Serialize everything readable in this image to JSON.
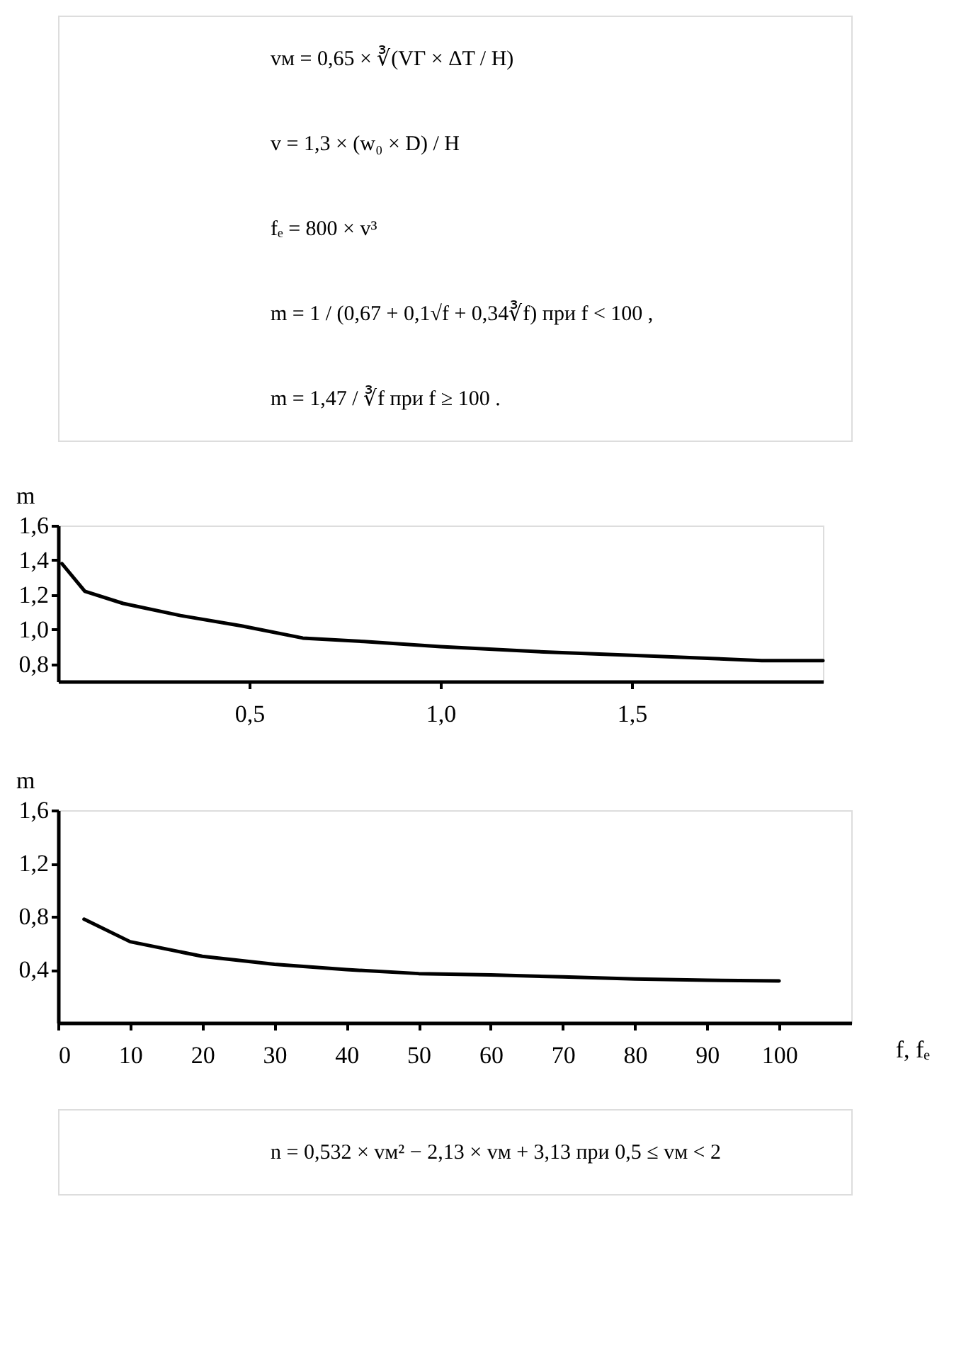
{
  "chart_data": [
    {
      "type": "line",
      "ylabel": "m",
      "annotations": [
        "vм = 0,65 × ∛(VГ × ΔT / H)",
        "v = 1,3 × (w₀ × D) / H",
        "fₑ = 800 × v³",
        "m = 1 / (0,67 + 0,1√f + 0,34∛f)     при   f < 100 ,",
        "m = 1,47 / ∛f     при   f ≥ 100 ."
      ],
      "x": [
        0.01,
        0.07,
        0.17,
        0.32,
        0.48,
        0.64,
        0.8,
        1.0,
        1.27,
        1.5,
        1.84,
        2.0
      ],
      "series": [
        {
          "color": "#000000",
          "values": [
            1.38,
            1.22,
            1.15,
            1.08,
            1.02,
            0.95,
            0.93,
            0.9,
            0.87,
            0.85,
            0.82,
            0.82
          ]
        }
      ],
      "xlim": [
        0,
        2.0
      ],
      "ylim": [
        0.7,
        1.6
      ],
      "xticks": [
        {
          "value": 0.5,
          "label": "0,5"
        },
        {
          "value": 1.0,
          "label": "1,0"
        },
        {
          "value": 1.5,
          "label": "1,5"
        }
      ],
      "yticks": [
        {
          "value": 0.8,
          "label": "0,8"
        },
        {
          "value": 1.0,
          "label": "1,0"
        },
        {
          "value": 1.2,
          "label": "1,2"
        },
        {
          "value": 1.4,
          "label": "1,4"
        },
        {
          "value": 1.6,
          "label": "1,6"
        }
      ],
      "grid": false,
      "marker": "none",
      "line_style": "solid"
    },
    {
      "type": "line",
      "ylabel": "m",
      "xlabel": "f, fₑ",
      "annotations": [
        "n = 0,532 × vм² − 2,13 × vм + 3,13     при   0,5 ≤ vм < 2"
      ],
      "x": [
        3.6,
        10,
        20,
        30,
        40,
        50,
        60,
        70,
        80,
        90,
        100
      ],
      "series": [
        {
          "color": "#000000",
          "values": [
            0.78,
            0.61,
            0.5,
            0.44,
            0.4,
            0.37,
            0.36,
            0.345,
            0.33,
            0.32,
            0.315
          ]
        }
      ],
      "xlim": [
        0,
        110
      ],
      "ylim": [
        0,
        1.6
      ],
      "xticks": [
        0,
        10,
        20,
        30,
        40,
        50,
        60,
        70,
        80,
        90,
        100
      ],
      "yticks": [
        {
          "value": 0.4,
          "label": "0,4"
        },
        {
          "value": 0.8,
          "label": "0,8"
        },
        {
          "value": 1.2,
          "label": "1,2"
        },
        {
          "value": 1.6,
          "label": "1,6"
        }
      ],
      "grid": false,
      "marker": "none",
      "line_style": "solid"
    }
  ]
}
